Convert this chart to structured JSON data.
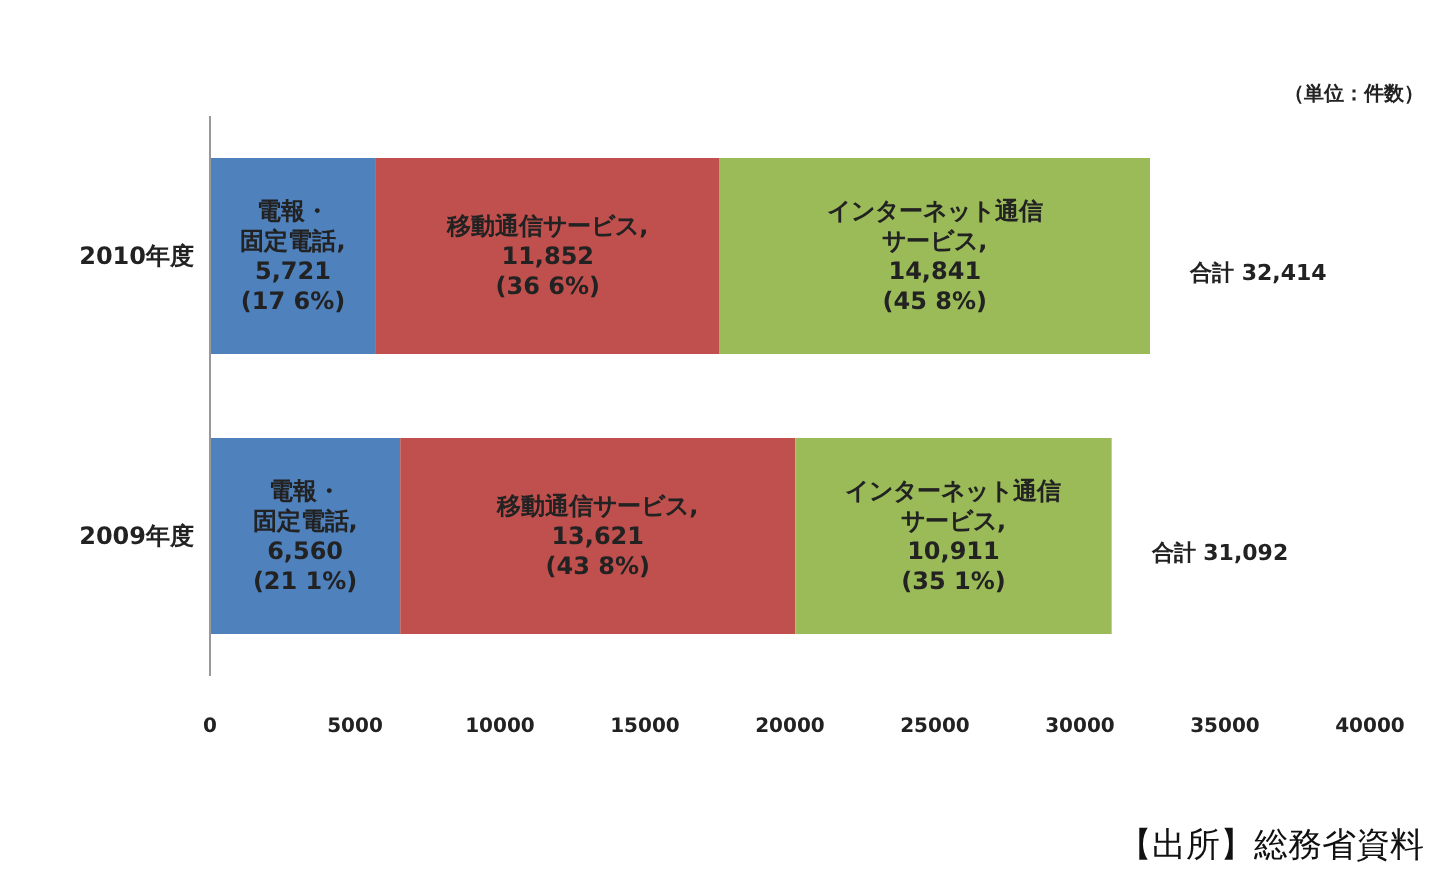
{
  "chart_data": {
    "type": "bar",
    "orientation": "horizontal",
    "stacked": true,
    "categories": [
      "2010年度",
      "2009年度"
    ],
    "series": [
      {
        "color": "#4f81bd",
        "values": [
          5721,
          6560
        ],
        "value_labels": [
          "電報・固定電話,\n5,721\n(17 6%)",
          "電報・固定電話,\n6,560\n(21 1%)"
        ]
      },
      {
        "color": "#c0504d",
        "values": [
          11852,
          13621
        ],
        "value_labels": [
          "移動通信サービス,\n11,852\n(36 6%)",
          "移動通信サービス,\n13,621\n(43 8%)"
        ]
      },
      {
        "color": "#9bbb59",
        "values": [
          14841,
          10911
        ],
        "value_labels": [
          "インターネット通信サービス,\n14,841\n(45 8%)",
          "インターネット通信サービス,\n10,911\n(35 1%)"
        ]
      }
    ],
    "totals": [
      "合計 32,414",
      "合計 31,092"
    ],
    "xlim": [
      0,
      40000
    ],
    "xticks": [
      0,
      5000,
      10000,
      15000,
      20000,
      25000,
      30000,
      35000,
      40000
    ],
    "annotations": [
      "（単位：件数）",
      "【出所】総務省資料"
    ]
  }
}
